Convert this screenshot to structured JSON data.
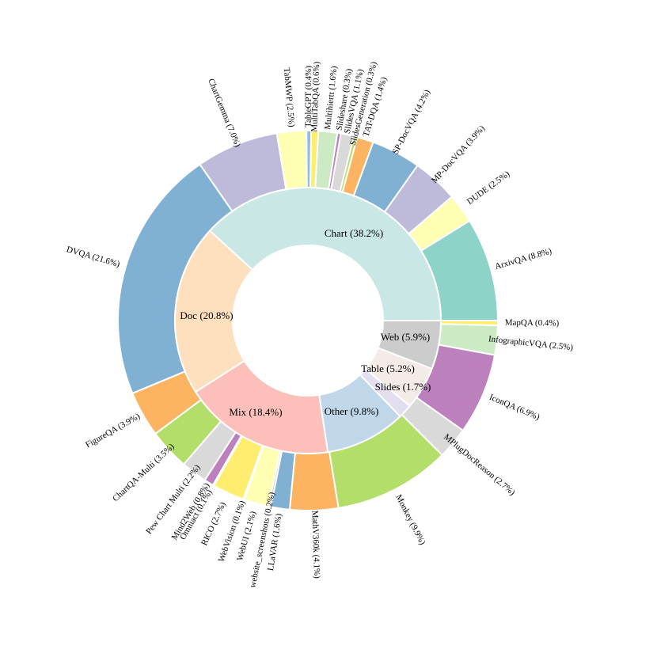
{
  "chart_data": {
    "type": "pie",
    "inner": [
      {
        "label": "Chart",
        "value": 38.2,
        "display": "Chart (38.2%)",
        "color": "#c9e7e5"
      },
      {
        "label": "Doc",
        "value": 20.8,
        "display": "Doc (20.8%)",
        "color": "#fedfbe"
      },
      {
        "label": "Mix",
        "value": 18.4,
        "display": "Mix (18.4%)",
        "color": "#fcbfba"
      },
      {
        "label": "Other",
        "value": 9.8,
        "display": "Other (9.8%)",
        "color": "#c0d6e9"
      },
      {
        "label": "Slides",
        "value": 1.7,
        "display": "Slides (1.7%)",
        "color": "#e2def0"
      },
      {
        "label": "Table",
        "value": 5.2,
        "display": "Table (5.2%)",
        "color": "#f4ebe8"
      },
      {
        "label": "Web",
        "value": 5.9,
        "display": "Web (5.9%)",
        "color": "#cccccc"
      }
    ],
    "outer": [
      {
        "label": "ArxivQA",
        "value": 8.8,
        "display": "ArxivQA  (8.8%)",
        "color": "#8dd3c7"
      },
      {
        "label": "DUDE",
        "value": 2.5,
        "display": "DUDE  (2.5%)",
        "color": "#ffffb3"
      },
      {
        "label": "MP-DocVQA",
        "value": 3.9,
        "display": "MP-DocVQA  (3.9%)",
        "color": "#bebada"
      },
      {
        "label": "SP-DocVQA",
        "value": 4.2,
        "display": "SP-DocVQA  (4.2%)",
        "color": "#80b1d3"
      },
      {
        "label": "TAT-DQA",
        "value": 1.4,
        "display": "TAT-DQA  (1.4%)",
        "color": "#fdb462"
      },
      {
        "label": "SlidesGeneration",
        "value": 0.3,
        "display": "SlidesGeneration  (0.3%)",
        "color": "#b3de69"
      },
      {
        "label": "SlidesVQA",
        "value": 1.1,
        "display": "SlidesVQA  (1.1%)",
        "color": "#d9d9d9"
      },
      {
        "label": "Slideshare",
        "value": 0.3,
        "display": "Slideshare  (0.3%)",
        "color": "#bc80bd"
      },
      {
        "label": "Multihiertt",
        "value": 1.6,
        "display": "Multihiertt  (1.6%)",
        "color": "#ccebc5"
      },
      {
        "label": "MultiTabQA",
        "value": 0.6,
        "display": "MultiTabQA  (0.6%)",
        "color": "#ffed6f"
      },
      {
        "label": "TableGPT",
        "value": 0.4,
        "display": "TableGPT  (0.4%)",
        "color": "#8ebfdc"
      },
      {
        "label": "TabMWP",
        "value": 2.5,
        "display": "TabMWP  (2.5%)",
        "color": "#ffffb3"
      },
      {
        "label": "ChartGemma",
        "value": 7.0,
        "display": "ChartGemma  (7.0%)",
        "color": "#bebada"
      },
      {
        "label": "DVQA",
        "value": 21.6,
        "display": "DVQA  (21.6%)",
        "color": "#80b1d3"
      },
      {
        "label": "FigureQA",
        "value": 3.9,
        "display": "FigureQA  (3.9%)",
        "color": "#fdb462"
      },
      {
        "label": "ChartQA-Multi",
        "value": 3.5,
        "display": "ChartQA-Multi  (3.5%)",
        "color": "#b3de69"
      },
      {
        "label": "Pew Chart Multi",
        "value": 2.2,
        "display": "Pew Chart Multi  (2.2%)",
        "color": "#d9d9d9"
      },
      {
        "label": "Mind2Web",
        "value": 0.8,
        "display": "Mind2Web  (0.8%)",
        "color": "#bc80bd"
      },
      {
        "label": "Omniact",
        "value": 0.1,
        "display": "Omniact  (0.1%)",
        "color": "#ccebc5"
      },
      {
        "label": "RICO",
        "value": 2.7,
        "display": "RICO  (2.7%)",
        "color": "#ffed6f"
      },
      {
        "label": "WebVision",
        "value": 0.1,
        "display": "WebVision  (0.1%)",
        "color": "#8dd3c7"
      },
      {
        "label": "WebUI",
        "value": 2.1,
        "display": "WebUI  (2.1%)",
        "color": "#ffffb3"
      },
      {
        "label": "website_screenshots",
        "value": 0.2,
        "display": "website_screenshots  (0.2%)",
        "color": "#bebada"
      },
      {
        "label": "LLaVAR",
        "value": 1.6,
        "display": "LLaVAR  (1.6%)",
        "color": "#80b1d3"
      },
      {
        "label": "MathV360k",
        "value": 4.1,
        "display": "MathV360k  (4.1%)",
        "color": "#fdb462"
      },
      {
        "label": "Monkey",
        "value": 9.9,
        "display": "Monkey  (9.9%)",
        "color": "#b3de69"
      },
      {
        "label": "MPlugDocReason",
        "value": 2.7,
        "display": "MPlugDocReason  (2.7%)",
        "color": "#d9d9d9"
      },
      {
        "label": "IconQA",
        "value": 6.9,
        "display": "IconQA  (6.9%)",
        "color": "#bc80bd"
      },
      {
        "label": "InfographicVQA",
        "value": 2.5,
        "display": "InfographicVQA  (2.5%)",
        "color": "#ccebc5"
      },
      {
        "label": "MapQA",
        "value": 0.4,
        "display": "MapQA  (0.4%)",
        "color": "#ffed6f"
      }
    ]
  }
}
